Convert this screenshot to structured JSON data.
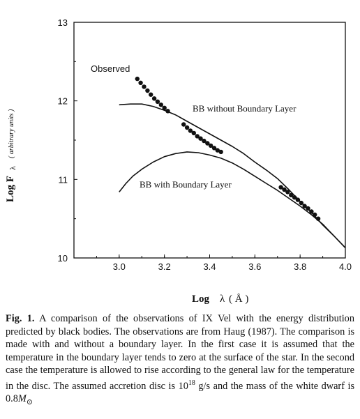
{
  "chart_data": {
    "type": "line",
    "xlim": [
      2.8,
      4.0
    ],
    "ylim": [
      10,
      13
    ],
    "x_ticks": [
      "3.0",
      "3.2",
      "3.4",
      "3.6",
      "3.8",
      "4.0"
    ],
    "x_tick_values": [
      3.0,
      3.2,
      3.4,
      3.6,
      3.8,
      4.0
    ],
    "y_ticks": [
      "10",
      "11",
      "12",
      "13"
    ],
    "y_tick_values": [
      10,
      11,
      12,
      13
    ],
    "xlabel": {
      "main": "Log",
      "symbol": "λ",
      "unit": "( Å )"
    },
    "ylabel": {
      "main": "Log F",
      "symbol": "λ",
      "unit": "( arbitrary units )"
    },
    "grid": false,
    "series": [
      {
        "name": "BB without Boundary Layer",
        "style": "line",
        "x": [
          3.0,
          3.05,
          3.1,
          3.15,
          3.2,
          3.25,
          3.3,
          3.35,
          3.4,
          3.45,
          3.5,
          3.55,
          3.6,
          3.65,
          3.7,
          3.75,
          3.8,
          3.85,
          3.9,
          3.95,
          4.0
        ],
        "y": [
          11.95,
          11.96,
          11.96,
          11.93,
          11.88,
          11.82,
          11.74,
          11.66,
          11.58,
          11.5,
          11.42,
          11.33,
          11.22,
          11.12,
          11.01,
          10.87,
          10.72,
          10.58,
          10.42,
          10.28,
          10.13
        ]
      },
      {
        "name": "BB with Boundary Layer",
        "style": "line",
        "x": [
          3.0,
          3.03,
          3.06,
          3.1,
          3.15,
          3.2,
          3.25,
          3.3,
          3.35,
          3.4,
          3.45,
          3.5,
          3.55,
          3.6,
          3.65,
          3.7,
          3.75,
          3.8,
          3.85,
          3.9,
          3.95,
          4.0
        ],
        "y": [
          10.84,
          10.95,
          11.04,
          11.13,
          11.22,
          11.29,
          11.33,
          11.35,
          11.34,
          11.31,
          11.27,
          11.21,
          11.13,
          11.04,
          10.95,
          10.86,
          10.76,
          10.66,
          10.55,
          10.43,
          10.28,
          10.13
        ]
      },
      {
        "name": "Observed",
        "style": "points",
        "x": [
          3.08,
          3.095,
          3.11,
          3.125,
          3.14,
          3.155,
          3.17,
          3.185,
          3.2,
          3.215,
          3.285,
          3.3,
          3.315,
          3.33,
          3.345,
          3.36,
          3.375,
          3.39,
          3.405,
          3.42,
          3.435,
          3.45,
          3.715,
          3.73,
          3.745,
          3.76,
          3.775,
          3.79,
          3.805,
          3.82,
          3.835,
          3.85,
          3.865,
          3.88
        ],
        "y": [
          12.28,
          12.23,
          12.18,
          12.13,
          12.08,
          12.03,
          11.99,
          11.95,
          11.91,
          11.87,
          11.7,
          11.66,
          11.62,
          11.59,
          11.55,
          11.52,
          11.49,
          11.46,
          11.43,
          11.4,
          11.37,
          11.35,
          10.9,
          10.87,
          10.84,
          10.8,
          10.77,
          10.74,
          10.7,
          10.66,
          10.63,
          10.59,
          10.55,
          10.5
        ]
      }
    ],
    "annotations": [
      "Observed",
      "BB without Boundary Layer",
      "BB with Boundary Layer"
    ]
  },
  "caption": {
    "label": "Fig. 1.",
    "lines": [
      "A comparison of the observations of IX Vel with the energy",
      "distribution predicted by black bodies. The observations are from Haug",
      "(1987). The comparison is made with and without a boundary layer. In",
      "the first case it is assumed that the temperature in the boundary layer",
      "tends to zero at the surface of the star. In the second case the temperature",
      "is allowed to rise according to the general law for the temperature in the",
      "disc. The assumed accretion disc is 10",
      "18",
      " g/s and the mass of the white",
      "dwarf is 0.8",
      "M",
      "⊙"
    ]
  }
}
